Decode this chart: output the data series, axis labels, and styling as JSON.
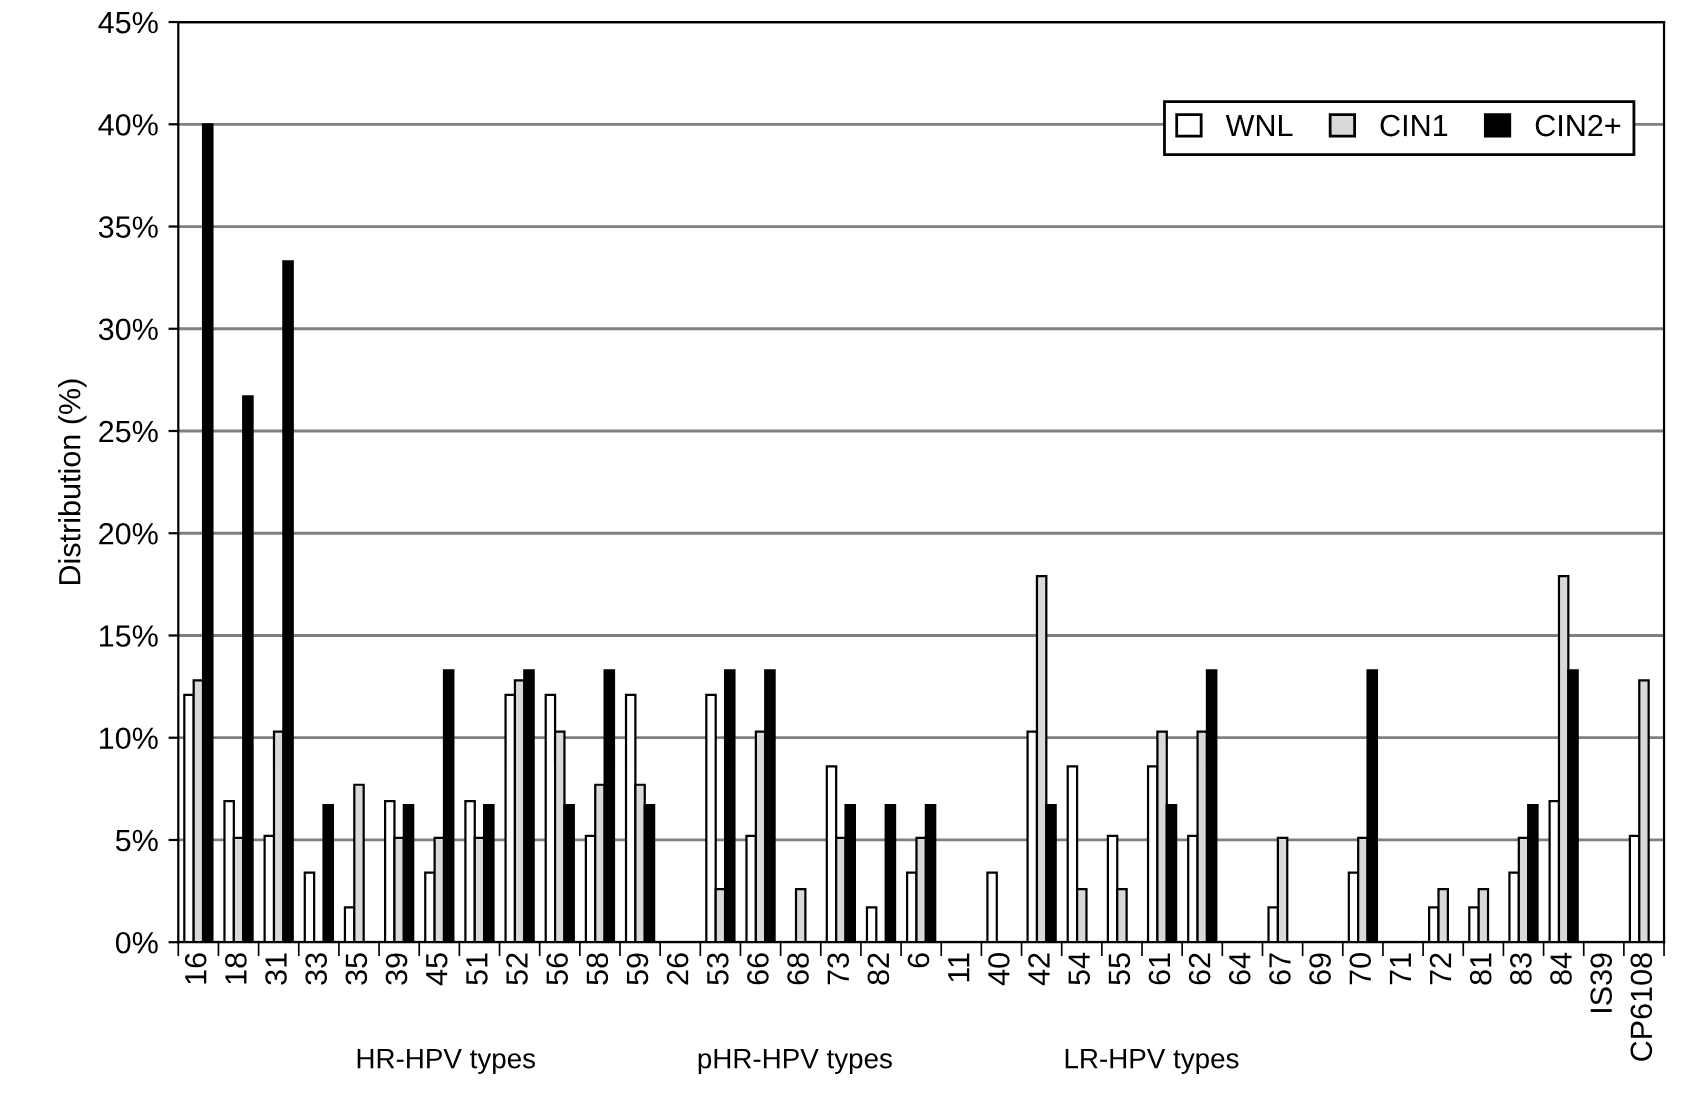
{
  "chart_data": {
    "type": "bar",
    "ylabel": "Distribution (%)",
    "categories": [
      "16",
      "18",
      "31",
      "33",
      "35",
      "39",
      "45",
      "51",
      "52",
      "56",
      "58",
      "59",
      "26",
      "53",
      "66",
      "68",
      "73",
      "82",
      "6",
      "11",
      "40",
      "42",
      "54",
      "55",
      "61",
      "62",
      "64",
      "67",
      "69",
      "70",
      "71",
      "72",
      "81",
      "83",
      "84",
      "IS39",
      "CP6108"
    ],
    "series": [
      {
        "name": "WNL",
        "color": "#ffffff",
        "values": [
          12.1,
          6.9,
          5.2,
          3.4,
          1.7,
          6.9,
          3.4,
          6.9,
          12.1,
          12.1,
          5.2,
          12.1,
          0,
          12.1,
          5.2,
          0,
          8.6,
          1.7,
          3.4,
          0,
          3.4,
          10.3,
          8.6,
          5.2,
          8.6,
          5.2,
          0,
          1.7,
          0,
          3.4,
          0,
          1.7,
          1.7,
          3.4,
          6.9,
          0,
          5.2
        ]
      },
      {
        "name": "CIN1",
        "color": "#d9d9d9",
        "values": [
          12.8,
          5.1,
          10.3,
          0,
          7.7,
          5.1,
          5.1,
          5.1,
          12.8,
          10.3,
          7.7,
          7.7,
          0,
          2.6,
          10.3,
          2.6,
          5.1,
          0,
          5.1,
          0,
          0,
          17.9,
          2.6,
          2.6,
          10.3,
          10.3,
          0,
          5.1,
          0,
          5.1,
          0,
          2.6,
          2.6,
          5.1,
          17.9,
          0,
          12.8
        ]
      },
      {
        "name": "CIN2+",
        "color": "#000000",
        "values": [
          40,
          26.7,
          33.3,
          6.7,
          0,
          6.7,
          13.3,
          6.7,
          13.3,
          6.7,
          13.3,
          6.7,
          0,
          13.3,
          13.3,
          0,
          6.7,
          6.7,
          6.7,
          0,
          0,
          6.7,
          0,
          0,
          6.7,
          13.3,
          0,
          0,
          0,
          13.3,
          0,
          0,
          0,
          6.7,
          13.3,
          0,
          null
        ]
      }
    ],
    "ylim": [
      0,
      45
    ],
    "yticks": [
      {
        "value": 0,
        "label": "0%"
      },
      {
        "value": 5,
        "label": "5%"
      },
      {
        "value": 10,
        "label": "10%"
      },
      {
        "value": 15,
        "label": "15%"
      },
      {
        "value": 20,
        "label": "20%"
      },
      {
        "value": 25,
        "label": "25%"
      },
      {
        "value": 30,
        "label": "30%"
      },
      {
        "value": 35,
        "label": "35%"
      },
      {
        "value": 40,
        "label": "40%"
      },
      {
        "value": 45,
        "label": "45%"
      }
    ],
    "grid": "y",
    "legend": "top right",
    "annotations": [
      "HR-HPV types",
      "pHR-HPV types",
      "LR-HPV types"
    ]
  }
}
